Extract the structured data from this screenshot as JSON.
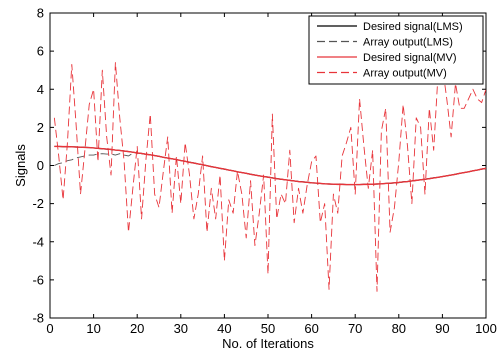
{
  "chart_data": {
    "type": "line",
    "xlabel": "No. of Iterations",
    "ylabel": "Signals",
    "xlim": [
      0,
      100
    ],
    "ylim": [
      -8,
      8
    ],
    "xticks": [
      0,
      10,
      20,
      30,
      40,
      50,
      60,
      70,
      80,
      90,
      100
    ],
    "yticks": [
      -8,
      -6,
      -4,
      -2,
      0,
      2,
      4,
      6,
      8
    ],
    "legend_position": "top-right",
    "grid": false,
    "x": [
      1,
      2,
      3,
      4,
      5,
      6,
      7,
      8,
      9,
      10,
      11,
      12,
      13,
      14,
      15,
      16,
      17,
      18,
      19,
      20,
      21,
      22,
      23,
      24,
      25,
      26,
      27,
      28,
      29,
      30,
      31,
      32,
      33,
      34,
      35,
      36,
      37,
      38,
      39,
      40,
      41,
      42,
      43,
      44,
      45,
      46,
      47,
      48,
      49,
      50,
      51,
      52,
      53,
      54,
      55,
      56,
      57,
      58,
      59,
      60,
      61,
      62,
      63,
      64,
      65,
      66,
      67,
      68,
      69,
      70,
      71,
      72,
      73,
      74,
      75,
      76,
      77,
      78,
      79,
      80,
      81,
      82,
      83,
      84,
      85,
      86,
      87,
      88,
      89,
      90,
      91,
      92,
      93,
      94,
      95,
      96,
      97,
      98,
      99,
      100
    ],
    "series": [
      {
        "name": "Desired signal(LMS)",
        "color": "#000000",
        "dash": "solid",
        "values": [
          1.0,
          1.0,
          0.99,
          0.99,
          0.98,
          0.97,
          0.96,
          0.95,
          0.94,
          0.92,
          0.9,
          0.88,
          0.86,
          0.84,
          0.81,
          0.79,
          0.76,
          0.73,
          0.7,
          0.66,
          0.63,
          0.59,
          0.56,
          0.52,
          0.48,
          0.43,
          0.39,
          0.35,
          0.31,
          0.26,
          0.22,
          0.17,
          0.13,
          0.08,
          0.04,
          -0.01,
          -0.06,
          -0.1,
          -0.15,
          -0.19,
          -0.24,
          -0.28,
          -0.33,
          -0.37,
          -0.41,
          -0.46,
          -0.5,
          -0.54,
          -0.58,
          -0.61,
          -0.65,
          -0.69,
          -0.72,
          -0.75,
          -0.78,
          -0.81,
          -0.84,
          -0.86,
          -0.88,
          -0.91,
          -0.92,
          -0.94,
          -0.96,
          -0.97,
          -0.98,
          -0.99,
          -0.99,
          -1.0,
          -1.0,
          -1.0,
          -1.0,
          -0.99,
          -0.99,
          -0.98,
          -0.97,
          -0.96,
          -0.94,
          -0.93,
          -0.91,
          -0.89,
          -0.86,
          -0.84,
          -0.81,
          -0.78,
          -0.75,
          -0.72,
          -0.69,
          -0.65,
          -0.62,
          -0.58,
          -0.54,
          -0.5,
          -0.46,
          -0.41,
          -0.37,
          -0.33,
          -0.28,
          -0.24,
          -0.19,
          -0.15
        ]
      },
      {
        "name": "Array output(LMS)",
        "color": "#555555",
        "dash": "8,4",
        "values": [
          0.0,
          0.1,
          0.15,
          0.25,
          0.3,
          0.4,
          0.45,
          0.5,
          0.55,
          0.55,
          0.6,
          0.62,
          0.6,
          0.6,
          0.55,
          0.62,
          0.55,
          0.5,
          0.65,
          0.66,
          0.63,
          0.59,
          0.56,
          0.52,
          0.48,
          0.43,
          0.39,
          0.35,
          0.31,
          0.26,
          0.22,
          0.17,
          0.13,
          0.08,
          0.04,
          -0.01,
          -0.06,
          -0.1,
          -0.15,
          -0.19,
          -0.24,
          -0.28,
          -0.33,
          -0.37,
          -0.41,
          -0.46,
          -0.5,
          -0.54,
          -0.58,
          -0.61,
          -0.65,
          -0.69,
          -0.72,
          -0.75,
          -0.78,
          -0.81,
          -0.84,
          -0.86,
          -0.88,
          -0.91,
          -0.92,
          -0.94,
          -0.96,
          -0.97,
          -0.98,
          -0.99,
          -0.99,
          -1.0,
          -1.0,
          -1.0,
          -1.0,
          -0.99,
          -0.99,
          -0.98,
          -0.97,
          -0.96,
          -0.94,
          -0.93,
          -0.91,
          -0.89,
          -0.86,
          -0.84,
          -0.81,
          -0.78,
          -0.75,
          -0.72,
          -0.69,
          -0.65,
          -0.62,
          -0.58,
          -0.54,
          -0.5,
          -0.46,
          -0.41,
          -0.37,
          -0.33,
          -0.28,
          -0.24,
          -0.19,
          -0.15
        ]
      },
      {
        "name": "Desired signal(MV)",
        "color": "#e8343a",
        "dash": "solid",
        "values": [
          1.0,
          1.0,
          0.99,
          0.99,
          0.98,
          0.97,
          0.96,
          0.95,
          0.94,
          0.92,
          0.9,
          0.88,
          0.86,
          0.84,
          0.81,
          0.79,
          0.76,
          0.73,
          0.7,
          0.66,
          0.63,
          0.59,
          0.56,
          0.52,
          0.48,
          0.43,
          0.39,
          0.35,
          0.31,
          0.26,
          0.22,
          0.17,
          0.13,
          0.08,
          0.04,
          -0.01,
          -0.06,
          -0.1,
          -0.15,
          -0.19,
          -0.24,
          -0.28,
          -0.33,
          -0.37,
          -0.41,
          -0.46,
          -0.5,
          -0.54,
          -0.58,
          -0.61,
          -0.65,
          -0.69,
          -0.72,
          -0.75,
          -0.78,
          -0.81,
          -0.84,
          -0.86,
          -0.88,
          -0.91,
          -0.92,
          -0.94,
          -0.96,
          -0.97,
          -0.98,
          -0.99,
          -0.99,
          -1.0,
          -1.0,
          -1.0,
          -1.0,
          -0.99,
          -0.99,
          -0.98,
          -0.97,
          -0.96,
          -0.94,
          -0.93,
          -0.91,
          -0.89,
          -0.86,
          -0.84,
          -0.81,
          -0.78,
          -0.75,
          -0.72,
          -0.69,
          -0.65,
          -0.62,
          -0.58,
          -0.54,
          -0.5,
          -0.46,
          -0.41,
          -0.37,
          -0.33,
          -0.28,
          -0.24,
          -0.19,
          -0.15
        ]
      },
      {
        "name": "Array output(MV)",
        "color": "#e8343a",
        "dash": "8,4",
        "values": [
          2.5,
          0.5,
          -1.8,
          1.2,
          5.3,
          2.1,
          -1.5,
          0.8,
          3.2,
          4.0,
          0.2,
          5.0,
          1.5,
          -0.5,
          5.4,
          2.5,
          0.2,
          -3.5,
          -1.2,
          1.0,
          -2.8,
          0.3,
          2.7,
          -1.5,
          -2.2,
          -0.3,
          1.5,
          -2.5,
          0.5,
          -2.0,
          1.2,
          -0.5,
          -2.8,
          -1.5,
          0.5,
          -3.5,
          -1.2,
          -2.8,
          -0.5,
          -5.0,
          -1.8,
          -2.5,
          -0.3,
          -1.5,
          -3.8,
          -0.8,
          -4.2,
          -2.5,
          -0.5,
          -5.7,
          2.7,
          -2.8,
          -1.5,
          -2.0,
          0.8,
          -3.0,
          -1.2,
          -2.5,
          -1.0,
          0.2,
          0.5,
          -3.0,
          -2.0,
          -6.5,
          -1.5,
          -2.5,
          0.5,
          1.2,
          2.0,
          -1.5,
          3.5,
          1.0,
          -1.2,
          0.8,
          -6.6,
          1.8,
          3.0,
          -3.5,
          -2.2,
          0.2,
          3.2,
          1.0,
          -2.0,
          2.5,
          2.0,
          -1.5,
          3.0,
          0.8,
          4.8,
          5.2,
          3.5,
          1.5,
          4.3,
          3.0,
          3.0,
          3.5,
          4.0,
          3.5,
          3.3,
          4.0
        ]
      }
    ]
  }
}
